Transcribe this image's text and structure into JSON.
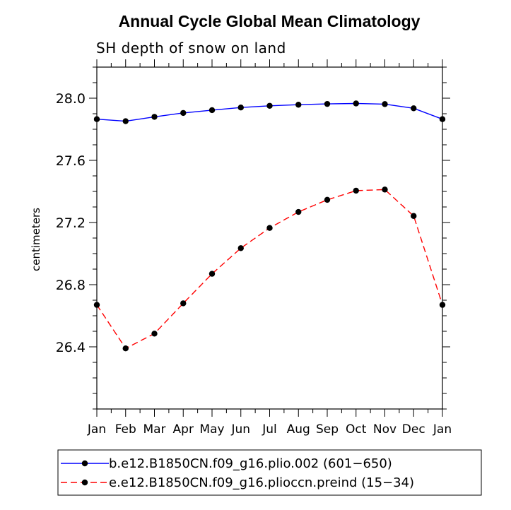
{
  "chart_data": {
    "type": "line",
    "title": "Annual Cycle Global Mean Climatology",
    "subtitle": "SH depth of snow on land",
    "xlabel": "",
    "ylabel": "centimeters",
    "categories": [
      "Jan",
      "Feb",
      "Mar",
      "Apr",
      "May",
      "Jun",
      "Jul",
      "Aug",
      "Sep",
      "Oct",
      "Nov",
      "Dec",
      "Jan"
    ],
    "ylim": [
      26.0,
      28.2
    ],
    "yticks": [
      "26.4",
      "26.8",
      "27.2",
      "27.6",
      "28.0"
    ],
    "grid": false,
    "series": [
      {
        "name": "b.e12.B1850CN.f09_g16.plio.002 (601−650)",
        "color": "#0000ff",
        "dash": "solid",
        "marker": "circle",
        "values": [
          27.865,
          27.852,
          27.88,
          27.905,
          27.923,
          27.94,
          27.951,
          27.958,
          27.963,
          27.966,
          27.962,
          27.935,
          27.865
        ]
      },
      {
        "name": "e.e12.B1850CN.f09_g16.plioccn.preind (15−34)",
        "color": "#ff0000",
        "dash": "dashed",
        "marker": "circle",
        "values": [
          26.67,
          26.39,
          26.485,
          26.68,
          26.87,
          27.035,
          27.165,
          27.268,
          27.346,
          27.405,
          27.412,
          27.242,
          26.67
        ]
      }
    ],
    "legend": "bottom"
  }
}
